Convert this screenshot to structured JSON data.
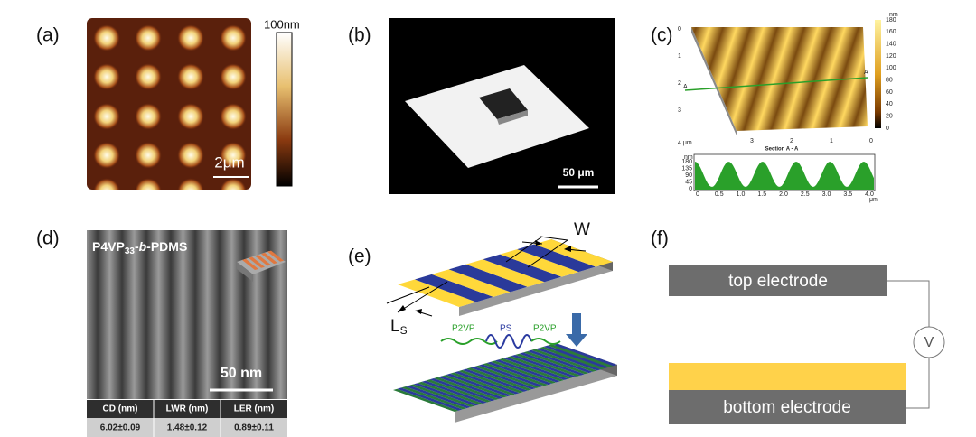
{
  "panels": {
    "a": {
      "label": "(a)",
      "colorbar_max": "100nm",
      "scale_bar": "2μm"
    },
    "b": {
      "label": "(b)",
      "scale_bar": "50 μm"
    },
    "c": {
      "label": "(c)",
      "colorbar_unit": "nm",
      "colorbar_ticks": [
        "180",
        "160",
        "140",
        "120",
        "100",
        "80",
        "60",
        "40",
        "20",
        "0"
      ],
      "left_axis": [
        "0",
        "1",
        "2",
        "3"
      ],
      "left_axis_end": "4 μm",
      "bottom_axis": [
        "3",
        "2",
        "1",
        "0"
      ],
      "section_marker": "A",
      "section_title": "Section A - A",
      "section_unit_y": "nm",
      "section_yticks": [
        "180",
        "135",
        "90",
        "45",
        "0"
      ],
      "section_xticks": [
        "0",
        "0.5",
        "1.0",
        "1.5",
        "2.0",
        "2.5",
        "3.0",
        "3.5",
        "4.0"
      ],
      "section_unit_x": "μm"
    },
    "d": {
      "label": "(d)",
      "title_main": "P4VP",
      "title_sub": "33",
      "title_dash": "-",
      "title_italic": "b",
      "title_rest": "-PDMS",
      "scale_bar": "50 nm",
      "table": {
        "header": [
          "CD (nm)",
          "LWR (nm)",
          "LER (nm)"
        ],
        "row": [
          "6.02±0.09",
          "1.48±0.12",
          "0.89±0.11"
        ]
      }
    },
    "e": {
      "label": "(e)",
      "width_label": "W",
      "spacing_label": "L",
      "spacing_sub": "S",
      "chain": [
        "P2VP",
        "PS",
        "P2VP"
      ]
    },
    "f": {
      "label": "(f)",
      "top": "top electrode",
      "bottom": "bottom electrode",
      "meter": "V"
    }
  }
}
